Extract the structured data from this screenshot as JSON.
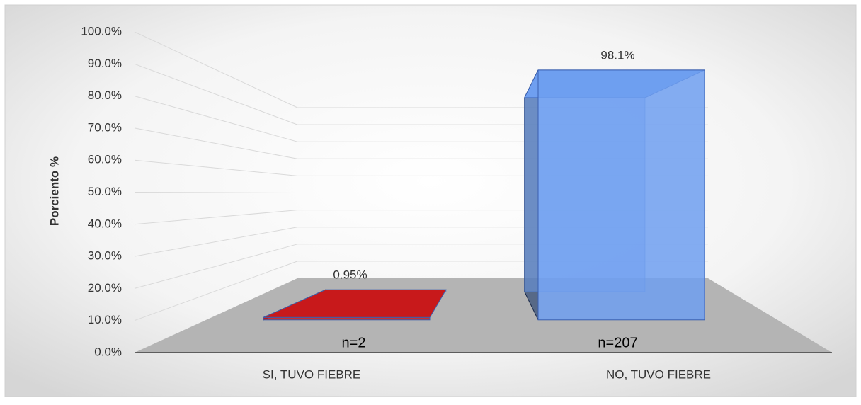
{
  "chart_data": {
    "type": "bar3d",
    "y_label": "Porciento %",
    "categories": [
      "SI, TUVO FIEBRE",
      "NO, TUVO FIEBRE"
    ],
    "values": [
      0.95,
      98.1
    ],
    "value_labels": [
      "0.95%",
      "98.1%"
    ],
    "annotations": [
      "n=2",
      "n=207"
    ],
    "colors": [
      "#c8191b",
      "#6f9ff0"
    ],
    "ylim": [
      0,
      100
    ],
    "yticks": [
      {
        "value": 0,
        "label": "0.0%"
      },
      {
        "value": 10,
        "label": "10.0%"
      },
      {
        "value": 20,
        "label": "20.0%"
      },
      {
        "value": 30,
        "label": "30.0%"
      },
      {
        "value": 40,
        "label": "40.0%"
      },
      {
        "value": 50,
        "label": "50.0%"
      },
      {
        "value": 60,
        "label": "60.0%"
      },
      {
        "value": 70,
        "label": "70.0%"
      },
      {
        "value": 80,
        "label": "80.0%"
      },
      {
        "value": 90,
        "label": "90.0%"
      },
      {
        "value": 100,
        "label": "100.0%"
      }
    ],
    "grid": true
  }
}
